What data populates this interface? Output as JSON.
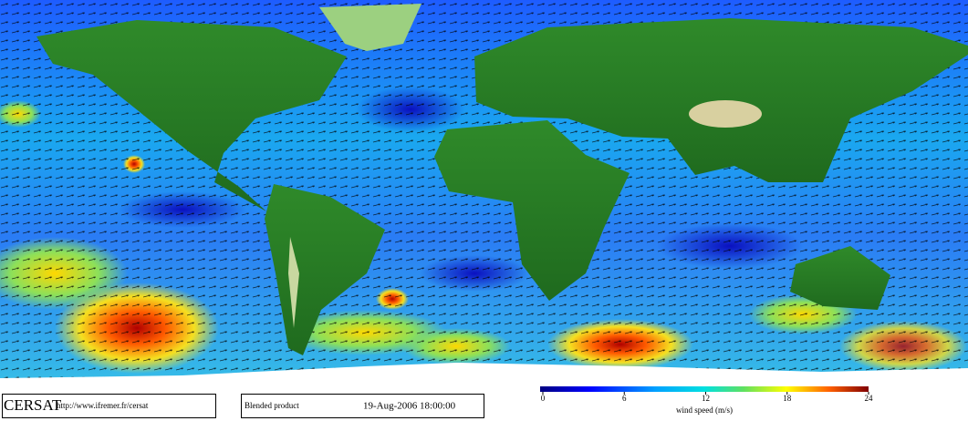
{
  "footer": {
    "logo": "CERSAT",
    "url": "http://www.ifremer.fr/cersat",
    "product": "Blended product",
    "date": "19-Aug-2006 18:00:00"
  },
  "colorbar": {
    "label": "wind speed (m/s)",
    "range": [
      0,
      24
    ],
    "ticks": [
      0,
      6,
      12,
      18,
      24
    ]
  }
}
